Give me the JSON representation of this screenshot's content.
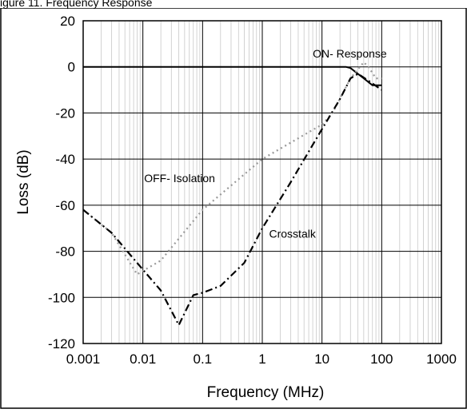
{
  "figure_caption": "igure 11. Frequency Response",
  "chart_data": {
    "type": "line",
    "title": "",
    "xlabel": "Frequency (MHz)",
    "ylabel": "Loss (dB)",
    "x_scale": "log",
    "xlim": [
      0.001,
      1000
    ],
    "ylim": [
      -120,
      20
    ],
    "x_ticks": [
      0.001,
      0.01,
      0.1,
      1,
      10,
      100,
      1000
    ],
    "x_tick_labels": [
      "0.001",
      "0.01",
      "0.1",
      "1",
      "10",
      "100",
      "1000"
    ],
    "y_ticks": [
      20,
      0,
      -20,
      -40,
      -60,
      -80,
      -100,
      -120
    ],
    "y_tick_labels": [
      "20",
      "0",
      "-20",
      "-40",
      "-60",
      "-80",
      "-100",
      "-120"
    ],
    "grid": true,
    "series": [
      {
        "name": "ON- Response",
        "color": "#000000",
        "style": "solid",
        "x": [
          0.001,
          0.01,
          0.1,
          1,
          10,
          25,
          30,
          40,
          50,
          70,
          100
        ],
        "y": [
          0,
          0,
          0,
          0,
          0,
          0,
          -0.5,
          -3,
          -5,
          -8,
          -8
        ]
      },
      {
        "name": "OFF- Isolation",
        "color": "#999999",
        "style": "dotted",
        "x": [
          0.001,
          0.003,
          0.008,
          0.02,
          0.1,
          1,
          10,
          15,
          30,
          50,
          60,
          80,
          100
        ],
        "y": [
          -62,
          -72,
          -90,
          -84,
          -62,
          -40,
          -25,
          -20,
          -5,
          2,
          0,
          -5,
          -5
        ]
      },
      {
        "name": "Crosstalk",
        "color": "#000000",
        "style": "dashdot",
        "x": [
          0.001,
          0.003,
          0.008,
          0.02,
          0.04,
          0.07,
          0.1,
          0.2,
          0.5,
          1,
          3,
          10,
          20,
          30,
          40,
          60,
          100
        ],
        "y": [
          -62,
          -72,
          -85,
          -97,
          -112,
          -99,
          -98,
          -95,
          -85,
          -70,
          -50,
          -27,
          -14,
          -5,
          -3,
          -6,
          -10
        ]
      }
    ],
    "annotations": [
      {
        "text": "ON- Response",
        "x": 7,
        "y": 4
      },
      {
        "text": "OFF- Isolation",
        "x": 0.0105,
        "y": -50
      },
      {
        "text": "Crosstalk",
        "x": 1.3,
        "y": -74
      }
    ]
  }
}
